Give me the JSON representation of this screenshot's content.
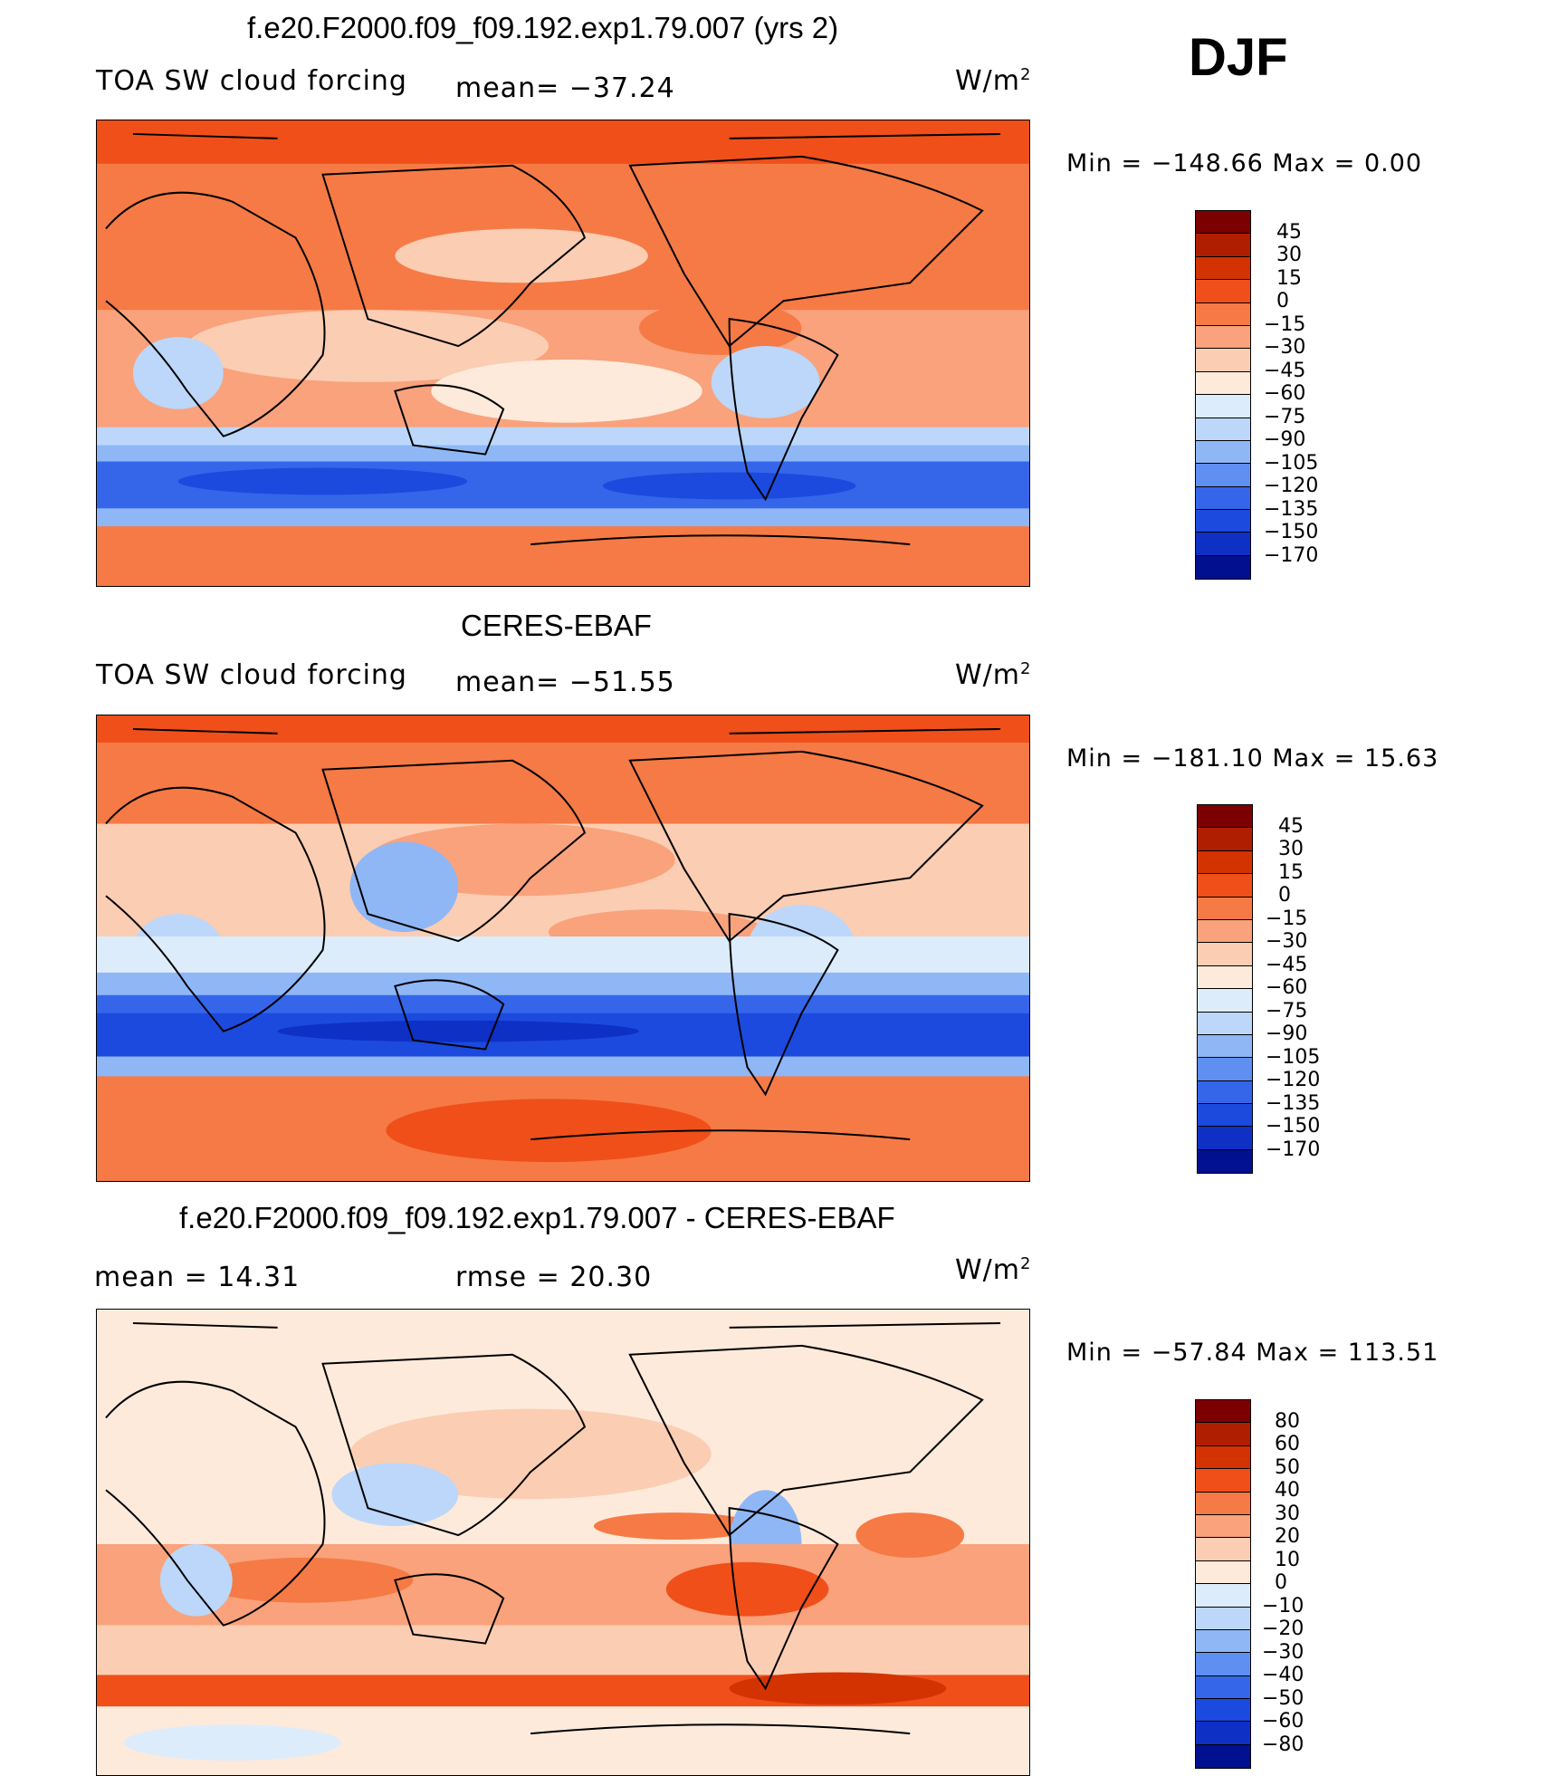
{
  "season": "DJF",
  "panels": [
    {
      "title": "f.e20.F2000.f09_f09.192.exp1.79.007 (yrs 2)",
      "left_label": "TOA SW cloud forcing",
      "center_label": "mean= −37.24",
      "units": "W/m",
      "units_sup": "2",
      "minmax": "Min  =  −148.66  Max  =     0.00",
      "colorbar": {
        "colors": [
          "#7d0000",
          "#b01e00",
          "#d33300",
          "#f04f1a",
          "#f67a45",
          "#f9a27c",
          "#fbcdb2",
          "#fdeada",
          "#dcecfb",
          "#bcd7f9",
          "#8fb7f6",
          "#5f8ff0",
          "#3566ea",
          "#1c4ade",
          "#0e30c4",
          "#00108f"
        ],
        "ticks": [
          "45",
          "30",
          "15",
          "0",
          "−15",
          "−30",
          "−45",
          "−60",
          "−75",
          "−90",
          "−105",
          "−120",
          "−135",
          "−150",
          "−170"
        ]
      }
    },
    {
      "title": "CERES-EBAF",
      "left_label": "TOA SW cloud forcing",
      "center_label": "mean= −51.55",
      "units": "W/m",
      "units_sup": "2",
      "minmax": "Min  =  −181.10  Max  =    15.63",
      "colorbar": {
        "colors": [
          "#7d0000",
          "#b01e00",
          "#d33300",
          "#f04f1a",
          "#f67a45",
          "#f9a27c",
          "#fbcdb2",
          "#fdeada",
          "#dcecfb",
          "#bcd7f9",
          "#8fb7f6",
          "#5f8ff0",
          "#3566ea",
          "#1c4ade",
          "#0e30c4",
          "#00108f"
        ],
        "ticks": [
          "45",
          "30",
          "15",
          "0",
          "−15",
          "−30",
          "−45",
          "−60",
          "−75",
          "−90",
          "−105",
          "−120",
          "−135",
          "−150",
          "−170"
        ]
      }
    },
    {
      "title": "f.e20.F2000.f09_f09.192.exp1.79.007 - CERES-EBAF",
      "left_label": "mean  =    14.31",
      "center_label": "rmse  =    20.30",
      "units": "W/m",
      "units_sup": "2",
      "minmax": "Min  =  −57.84  Max  =  113.51",
      "colorbar": {
        "colors": [
          "#7d0000",
          "#b01e00",
          "#d33300",
          "#f04f1a",
          "#f67a45",
          "#f9a27c",
          "#fbcdb2",
          "#fdeada",
          "#dcecfb",
          "#bcd7f9",
          "#8fb7f6",
          "#5f8ff0",
          "#3566ea",
          "#1c4ade",
          "#0e30c4",
          "#00108f"
        ],
        "ticks": [
          "80",
          "60",
          "50",
          "40",
          "30",
          "20",
          "10",
          "0",
          "−10",
          "−20",
          "−30",
          "−40",
          "−50",
          "−60",
          "−80"
        ]
      }
    }
  ]
}
